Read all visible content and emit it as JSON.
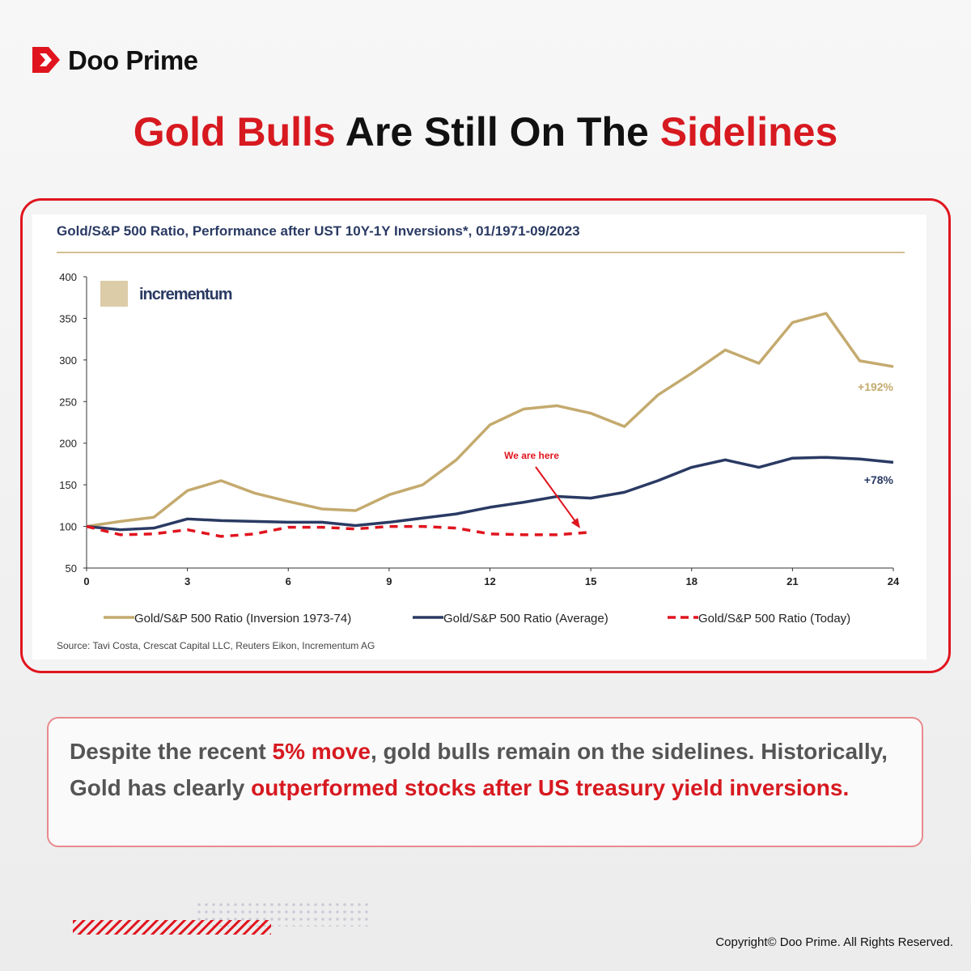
{
  "header": {
    "brand": "Doo Prime",
    "title": [
      "Gold Bulls",
      " Are Still On The ",
      "Sidelines"
    ]
  },
  "chart_data": {
    "type": "line",
    "title": "Gold/S&P 500 Ratio, Performance after UST 10Y-1Y Inversions*, 01/1971-09/2023",
    "logo": "incrementum",
    "source": "Source: Tavi Costa, Crescat Capital LLC, Reuters Eikon, Incrementum AG",
    "x": [
      0,
      1,
      2,
      3,
      4,
      5,
      6,
      7,
      8,
      9,
      10,
      11,
      12,
      13,
      14,
      15,
      16,
      17,
      18,
      19,
      20,
      21,
      22,
      23,
      24
    ],
    "xlim": [
      0,
      24
    ],
    "xticks": [
      0,
      3,
      6,
      9,
      12,
      15,
      18,
      21,
      24
    ],
    "ylim": [
      50,
      400
    ],
    "yticks": [
      50,
      100,
      150,
      200,
      250,
      300,
      350,
      400
    ],
    "grid": false,
    "series": [
      {
        "name": "Gold/S&P 500 Ratio (Inversion 1973-74)",
        "color": "#c4aa6e",
        "dashed": false,
        "values": [
          100,
          106,
          111,
          143,
          155,
          140,
          130,
          121,
          119,
          138,
          150,
          180,
          222,
          241,
          245,
          236,
          220,
          258,
          284,
          312,
          296,
          345,
          356,
          299,
          292
        ]
      },
      {
        "name": "Gold/S&P 500 Ratio (Average)",
        "color": "#2a3a63",
        "dashed": false,
        "values": [
          100,
          96,
          98,
          109,
          107,
          106,
          105,
          105,
          101,
          105,
          110,
          115,
          123,
          129,
          136,
          134,
          141,
          155,
          171,
          180,
          171,
          182,
          183,
          181,
          177
        ]
      },
      {
        "name": "Gold/S&P 500 Ratio (Today)",
        "color": "#e0141e",
        "dashed": true,
        "values": [
          100,
          90,
          91,
          96,
          88,
          91,
          99,
          99,
          97,
          100,
          100,
          98,
          91,
          90,
          90,
          93,
          null,
          null,
          null,
          null,
          null,
          null,
          null,
          null,
          null
        ]
      }
    ],
    "annotations": [
      "+192%",
      "+78%",
      "We are here"
    ]
  },
  "text": {
    "body": [
      {
        "text": "Despite the recent ",
        "highlight": false
      },
      {
        "text": "5% move",
        "highlight": true
      },
      {
        "text": ", gold bulls remain on the sidelines. Historically, Gold has clearly ",
        "highlight": false
      },
      {
        "text": "outperformed stocks after US treasury yield inversions.",
        "highlight": true
      }
    ]
  },
  "footer": {
    "copyright": "Copyright© Doo Prime. All Rights Reserved."
  }
}
